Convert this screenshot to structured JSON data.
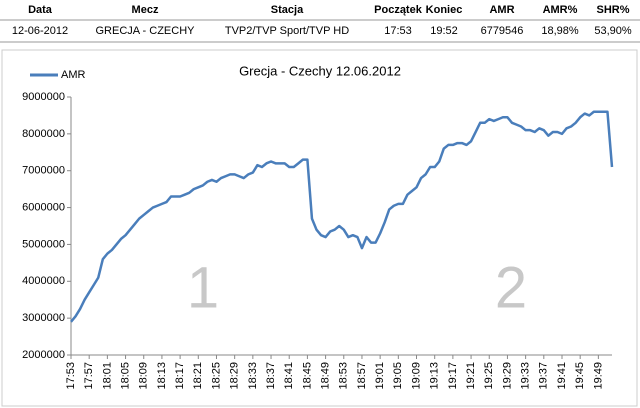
{
  "table": {
    "header": [
      "Data",
      "Mecz",
      "Stacja",
      "Początek",
      "Koniec",
      "AMR",
      "AMR%",
      "SHR%"
    ],
    "rows": [
      [
        "12-06-2012",
        "GRECJA - CZECHY",
        "TVP2/TVP Sport/TVP HD",
        "17:53",
        "19:52",
        "6779546",
        "18,98%",
        "53,90%"
      ]
    ]
  },
  "chart_data": {
    "type": "line",
    "title": "Grecja - Czechy 12.06.2012",
    "categories": [
      "17:53",
      null,
      null,
      null,
      "17:57",
      null,
      null,
      null,
      "18:01",
      null,
      null,
      null,
      "18:05",
      null,
      null,
      null,
      "18:09",
      null,
      null,
      null,
      "18:13",
      null,
      null,
      null,
      "18:17",
      null,
      null,
      null,
      "18:21",
      null,
      null,
      null,
      "18:25",
      null,
      null,
      null,
      "18:29",
      null,
      null,
      null,
      "18:33",
      null,
      null,
      null,
      "18:37",
      null,
      null,
      null,
      "18:41",
      null,
      null,
      null,
      "18:45",
      null,
      null,
      null,
      "18:49",
      null,
      null,
      null,
      "18:53",
      null,
      null,
      null,
      "18:57",
      null,
      null,
      null,
      "19:01",
      null,
      null,
      null,
      "19:05",
      null,
      null,
      null,
      "19:09",
      null,
      null,
      null,
      "19:13",
      null,
      null,
      null,
      "19:17",
      null,
      null,
      null,
      "19:21",
      null,
      null,
      null,
      "19:25",
      null,
      null,
      null,
      "19:29",
      null,
      null,
      null,
      "19:33",
      null,
      null,
      null,
      "19:37",
      null,
      null,
      null,
      "19:41",
      null,
      null,
      null,
      "19:45",
      null,
      null,
      null,
      "19:49",
      null,
      null,
      null
    ],
    "series": [
      {
        "name": "AMR",
        "color": "#4a7ebb",
        "values": [
          2900000,
          3050000,
          3250000,
          3500000,
          3700000,
          3900000,
          4100000,
          4600000,
          4750000,
          4850000,
          5000000,
          5150000,
          5250000,
          5400000,
          5550000,
          5700000,
          5800000,
          5900000,
          6000000,
          6050000,
          6100000,
          6150000,
          6300000,
          6300000,
          6300000,
          6350000,
          6400000,
          6500000,
          6550000,
          6600000,
          6700000,
          6750000,
          6700000,
          6800000,
          6850000,
          6900000,
          6900000,
          6850000,
          6800000,
          6900000,
          6950000,
          7150000,
          7100000,
          7200000,
          7250000,
          7200000,
          7200000,
          7200000,
          7100000,
          7100000,
          7200000,
          7300000,
          7300000,
          5700000,
          5400000,
          5250000,
          5200000,
          5350000,
          5400000,
          5500000,
          5400000,
          5200000,
          5250000,
          5200000,
          4900000,
          5200000,
          5050000,
          5050000,
          5300000,
          5600000,
          5950000,
          6050000,
          6100000,
          6100000,
          6350000,
          6450000,
          6550000,
          6800000,
          6900000,
          7100000,
          7100000,
          7250000,
          7600000,
          7700000,
          7700000,
          7750000,
          7750000,
          7700000,
          7800000,
          8050000,
          8300000,
          8300000,
          8400000,
          8350000,
          8400000,
          8450000,
          8450000,
          8300000,
          8250000,
          8200000,
          8100000,
          8100000,
          8050000,
          8150000,
          8100000,
          7950000,
          8050000,
          8050000,
          8000000,
          8150000,
          8200000,
          8300000,
          8450000,
          8550000,
          8500000,
          8600000,
          8600000,
          8600000,
          8600000,
          7100000
        ]
      }
    ],
    "ylim": [
      2000000,
      9000000
    ],
    "yticks": [
      2000000,
      3000000,
      4000000,
      5000000,
      6000000,
      7000000,
      8000000,
      9000000
    ],
    "legend": "top-left",
    "grid": false,
    "annotations": [
      {
        "text": "1"
      },
      {
        "text": "2"
      }
    ]
  }
}
